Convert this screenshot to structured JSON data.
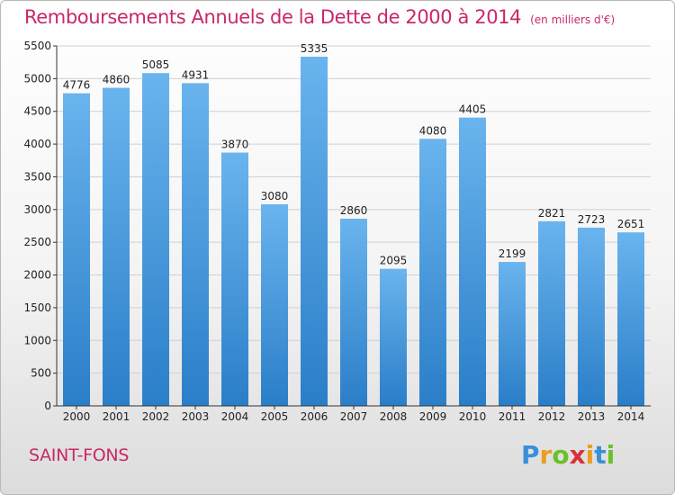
{
  "header": {
    "title": "Remboursements Annuels de la Dette de 2000 à 2014",
    "subtitle": "(en milliers d'€)"
  },
  "footer": {
    "commune": "SAINT-FONS",
    "logo_letters": [
      "P",
      "r",
      "o",
      "x",
      "i",
      "t",
      "i"
    ],
    "logo_colors": [
      "#3a8fd8",
      "#e8a020",
      "#6cbf2a",
      "#d8323a",
      "#e8a020",
      "#3a8fd8",
      "#6cbf2a"
    ]
  },
  "colors": {
    "bar_light": "#6ab4ee",
    "bar_dark": "#2a7ec8",
    "title": "#c8286a",
    "grid": "#d0d0d0"
  },
  "chart_data": {
    "type": "bar",
    "categories": [
      "2000",
      "2001",
      "2002",
      "2003",
      "2004",
      "2005",
      "2006",
      "2007",
      "2008",
      "2009",
      "2010",
      "2011",
      "2012",
      "2013",
      "2014"
    ],
    "values": [
      4776,
      4860,
      5085,
      4931,
      3870,
      3080,
      5335,
      2860,
      2095,
      4080,
      4405,
      2199,
      2821,
      2723,
      2651
    ],
    "ylim": [
      0,
      5500
    ],
    "yticks": [
      0,
      500,
      1000,
      1500,
      2000,
      2500,
      3000,
      3500,
      4000,
      4500,
      5000,
      5500
    ],
    "grid": true,
    "data_labels": true
  }
}
